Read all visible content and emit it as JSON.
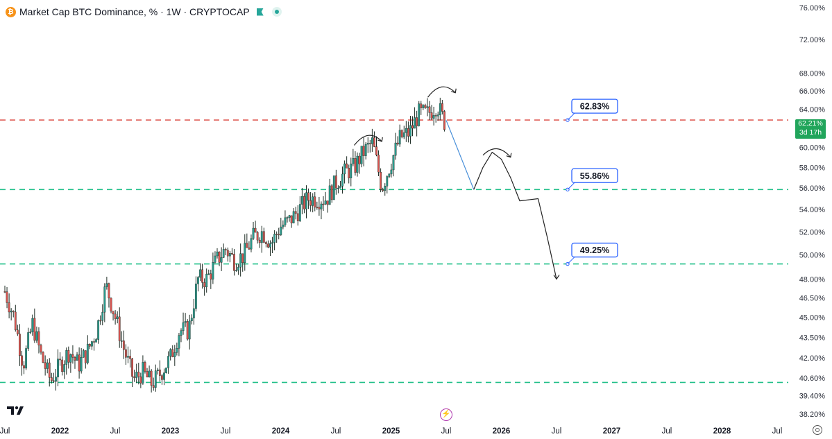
{
  "header": {
    "title": "Market Cap BTC Dominance, % · 1W · CRYPTOCAP",
    "coin_icon": "bitcoin-icon",
    "coin_glyph": "₿",
    "flag_icon": "flag-icon",
    "status_icon": "live-dot-icon"
  },
  "price_badge": {
    "price": "62.21%",
    "countdown": "3d 17h"
  },
  "tradingview_logo": "tradingview-logo-icon",
  "replay_icon": "lightning-icon",
  "settings_icon": "gear-icon",
  "colors": {
    "up": "#2a9d8f",
    "down": "#d9534f",
    "candle": "#1b2a22",
    "red_line": "#e0605a",
    "green_line": "#22c08a",
    "label_border": "#2962ff",
    "badge": "#21a55b",
    "projection": "#4a90d9"
  },
  "chart_data": {
    "type": "candlestick",
    "title": "Market Cap BTC Dominance, % · 1W · CRYPTOCAP",
    "interval": "1W",
    "scale": "log",
    "y_ticks": [
      "76.00%",
      "72.00%",
      "68.00%",
      "66.00%",
      "64.00%",
      "62.00%",
      "60.00%",
      "58.00%",
      "56.00%",
      "54.00%",
      "52.00%",
      "50.00%",
      "48.00%",
      "46.50%",
      "45.00%",
      "43.50%",
      "42.00%",
      "40.60%",
      "39.40%",
      "38.20%"
    ],
    "y_tick_values": [
      76,
      72,
      68,
      66,
      64,
      62,
      60,
      58,
      56,
      54,
      52,
      50,
      48,
      46.5,
      45,
      43.5,
      42,
      40.6,
      39.4,
      38.2
    ],
    "ylim": [
      37.5,
      77
    ],
    "x_ticks": [
      "Jul",
      "2022",
      "Jul",
      "2023",
      "Jul",
      "2024",
      "Jul",
      "2025",
      "Jul",
      "2026",
      "Jul",
      "2027",
      "Jul",
      "2028",
      "Jul"
    ],
    "x_tick_dates": [
      "2021-07",
      "2022-01",
      "2022-07",
      "2023-01",
      "2023-07",
      "2024-01",
      "2024-07",
      "2025-01",
      "2025-07",
      "2026-01",
      "2026-07",
      "2027-01",
      "2027-07",
      "2028-01",
      "2028-07"
    ],
    "bold_x_ticks": [
      "2022",
      "2023",
      "2024",
      "2025",
      "2026",
      "2027",
      "2028"
    ],
    "last_price": 62.21,
    "horizontal_levels": [
      {
        "value": 62.83,
        "label": "62.83%",
        "style": "dashed",
        "color": "red",
        "labeled": true
      },
      {
        "value": 55.86,
        "label": "55.86%",
        "style": "dashed",
        "color": "green",
        "labeled": true
      },
      {
        "value": 49.25,
        "label": "49.25%",
        "style": "dashed",
        "color": "green",
        "labeled": true
      },
      {
        "value": 40.3,
        "label": "",
        "style": "dashed",
        "color": "green",
        "labeled": false
      }
    ],
    "weekly_close_path": [
      [
        "2021-07",
        47.0
      ],
      [
        "2021-08",
        45.0
      ],
      [
        "2021-09",
        41.5
      ],
      [
        "2021-10",
        44.5
      ],
      [
        "2021-11",
        42.0
      ],
      [
        "2021-12",
        40.4
      ],
      [
        "2022-01",
        41.5
      ],
      [
        "2022-02",
        42.5
      ],
      [
        "2022-03",
        41.5
      ],
      [
        "2022-04",
        42.5
      ],
      [
        "2022-05",
        44.0
      ],
      [
        "2022-06",
        47.5
      ],
      [
        "2022-07",
        45.0
      ],
      [
        "2022-08",
        42.5
      ],
      [
        "2022-09",
        40.5
      ],
      [
        "2022-10",
        41.0
      ],
      [
        "2022-11",
        40.2
      ],
      [
        "2022-12",
        41.0
      ],
      [
        "2023-01",
        42.0
      ],
      [
        "2023-02",
        44.0
      ],
      [
        "2023-03",
        44.0
      ],
      [
        "2023-04",
        48.0
      ],
      [
        "2023-05",
        48.0
      ],
      [
        "2023-06",
        49.5
      ],
      [
        "2023-07",
        50.5
      ],
      [
        "2023-08",
        49.5
      ],
      [
        "2023-09",
        50.0
      ],
      [
        "2023-10",
        51.5
      ],
      [
        "2023-11",
        52.0
      ],
      [
        "2023-12",
        51.0
      ],
      [
        "2024-01",
        52.5
      ],
      [
        "2024-02",
        53.0
      ],
      [
        "2024-03",
        54.0
      ],
      [
        "2024-04",
        55.0
      ],
      [
        "2024-05",
        55.0
      ],
      [
        "2024-06",
        55.0
      ],
      [
        "2024-07",
        56.5
      ],
      [
        "2024-08",
        57.5
      ],
      [
        "2024-09",
        58.0
      ],
      [
        "2024-10",
        59.5
      ],
      [
        "2024-11",
        60.5
      ],
      [
        "2024-12",
        56.0
      ],
      [
        "2025-01",
        58.5
      ],
      [
        "2025-02",
        61.0
      ],
      [
        "2025-03",
        61.5
      ],
      [
        "2025-04",
        63.5
      ],
      [
        "2025-05",
        63.5
      ],
      [
        "2025-06",
        64.5
      ],
      [
        "2025-07",
        62.2
      ]
    ],
    "projection_path": [
      [
        "2025-07",
        62.8
      ],
      [
        "2025-10",
        55.86
      ],
      [
        "2025-11",
        58.0
      ],
      [
        "2025-12",
        59.5
      ],
      [
        "2026-01",
        58.8
      ],
      [
        "2026-02",
        57.0
      ],
      [
        "2026-03",
        54.8
      ],
      [
        "2026-05",
        55.0
      ],
      [
        "2026-06",
        51.5
      ],
      [
        "2026-07",
        48.0
      ]
    ]
  }
}
